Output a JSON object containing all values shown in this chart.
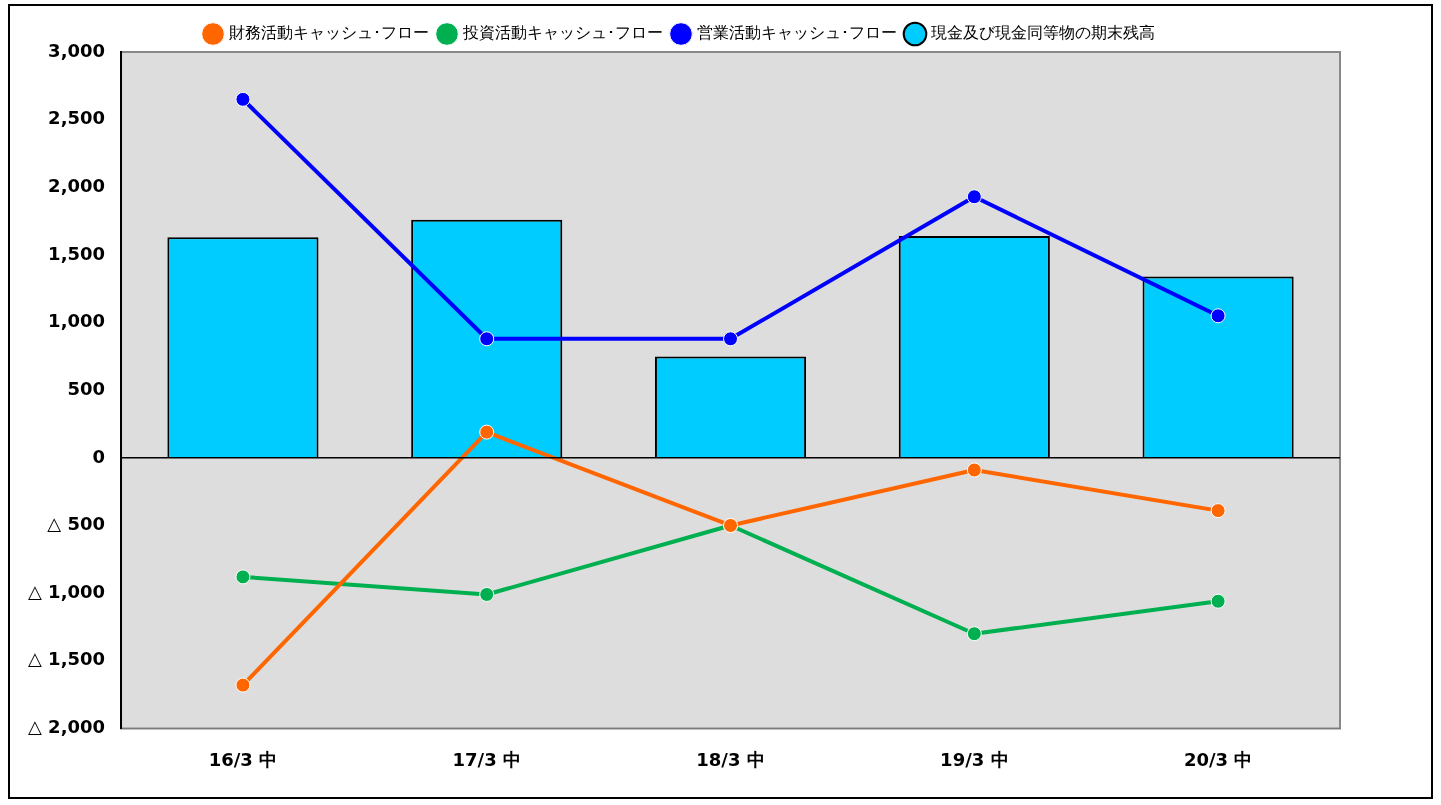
{
  "chart_data": {
    "type": "bar",
    "categories": [
      "16/3 中",
      "17/3 中",
      "18/3 中",
      "19/3 中",
      "20/3 中"
    ],
    "series": [
      {
        "name": "現金及び現金同等物の期末残高",
        "color": "#00ccff",
        "values": [
          1630,
          1760,
          750,
          1640,
          1340
        ]
      },
      {
        "name": "営業活動キャッシュ･フロー",
        "type": "line",
        "color": "#0000ff",
        "values": [
          2650,
          880,
          880,
          1930,
          1050
        ]
      },
      {
        "name": "投資活動キャッシュ･フロー",
        "type": "line",
        "color": "#00b050",
        "values": [
          -880,
          -1010,
          -500,
          -1300,
          -1060
        ]
      },
      {
        "name": "財務活動キャッシュ･フロー",
        "type": "line",
        "color": "#ff6600",
        "values": [
          -1680,
          190,
          -500,
          -90,
          -390
        ]
      }
    ],
    "ylim": [
      -2000,
      3000
    ],
    "yticks": [
      {
        "value": -2000,
        "label": "△ 2,000"
      },
      {
        "value": -1500,
        "label": "△ 1,500"
      },
      {
        "value": -1000,
        "label": "△ 1,000"
      },
      {
        "value": -500,
        "label": "△ 500"
      },
      0,
      {
        "value": 500,
        "label": "500"
      },
      {
        "value": 1000,
        "label": "1,000"
      },
      {
        "value": 1500,
        "label": "1,500"
      },
      {
        "value": 2000,
        "label": "2,000"
      },
      {
        "value": 2500,
        "label": "2,500"
      },
      {
        "value": 3000,
        "label": "3,000"
      }
    ],
    "ref_lines": [
      {
        "axis": "y",
        "value": 0,
        "color": "#000000"
      }
    ],
    "grid": false,
    "legend": "top",
    "marker": "circle",
    "line_style": "solid"
  }
}
